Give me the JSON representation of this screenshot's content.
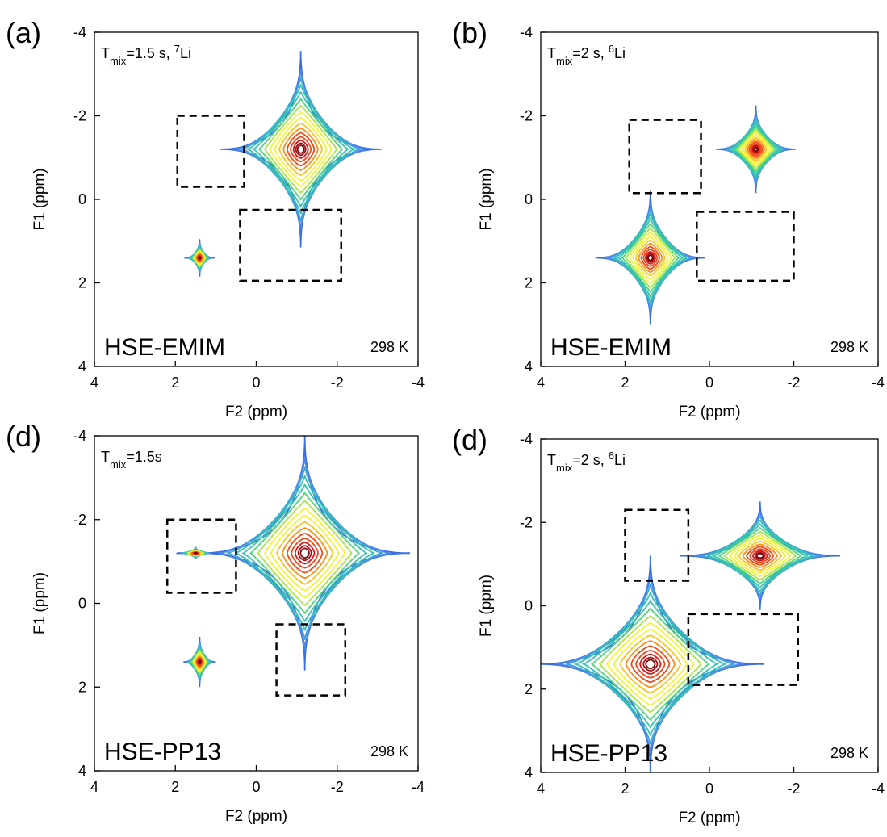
{
  "chart_data": [
    {
      "type": "contour",
      "panel_label": "(a)",
      "annotation": [
        {
          "text": "T"
        },
        {
          "text": "mix",
          "shift": "sub"
        },
        {
          "text": "=1.5 s, "
        },
        {
          "text": "7",
          "shift": "super"
        },
        {
          "text": "Li"
        }
      ],
      "sample": "HSE-EMIM",
      "temperature": "298 K",
      "xlabel": "F2 (ppm)",
      "ylabel": "F1 (ppm)",
      "xlim": [
        4,
        -4
      ],
      "ylim": [
        -4,
        4
      ],
      "xticks": [
        4,
        2,
        0,
        -2,
        -4
      ],
      "yticks": [
        -4,
        -2,
        0,
        2,
        4
      ],
      "peaks": [
        {
          "x": -1.1,
          "y": -1.2,
          "width": 2.0,
          "height": 2.35
        },
        {
          "x": 1.4,
          "y": 1.4,
          "width": 0.35,
          "height": 0.45
        }
      ],
      "regions": [
        {
          "x": [
            1.95,
            0.3
          ],
          "y": [
            -2,
            -0.3
          ]
        },
        {
          "x": [
            0.4,
            -2.1
          ],
          "y": [
            0.25,
            1.95
          ]
        }
      ]
    },
    {
      "type": "contour",
      "panel_label": "(b)",
      "annotation": [
        {
          "text": "T"
        },
        {
          "text": "mix",
          "shift": "sub"
        },
        {
          "text": "=2 s, "
        },
        {
          "text": "6",
          "shift": "super"
        },
        {
          "text": "Li"
        }
      ],
      "sample": "HSE-EMIM",
      "temperature": "298 K",
      "xlabel": "F2 (ppm)",
      "ylabel": "F1 (ppm)",
      "xlim": [
        4,
        -4
      ],
      "ylim": [
        -4,
        4
      ],
      "xticks": [
        4,
        2,
        0,
        -2,
        -4
      ],
      "yticks": [
        -4,
        -2,
        0,
        2,
        4
      ],
      "peaks": [
        {
          "x": -1.1,
          "y": -1.2,
          "width": 0.95,
          "height": 1.05
        },
        {
          "x": 1.4,
          "y": 1.4,
          "width": 1.3,
          "height": 1.6
        }
      ],
      "regions": [
        {
          "x": [
            1.9,
            0.2
          ],
          "y": [
            -1.9,
            -0.15
          ]
        },
        {
          "x": [
            0.3,
            -2
          ],
          "y": [
            0.3,
            1.95
          ]
        }
      ]
    },
    {
      "type": "contour",
      "panel_label": "(d)",
      "annotation": [
        {
          "text": "T"
        },
        {
          "text": "mix",
          "shift": "sub"
        },
        {
          "text": "=1.5s"
        }
      ],
      "sample": "HSE-PP13",
      "temperature": "298 K",
      "xlabel": "F2 (ppm)",
      "ylabel": "F1 (ppm)",
      "xlim": [
        4,
        -4
      ],
      "ylim": [
        -4,
        4
      ],
      "xticks": [
        4,
        2,
        0,
        -2,
        -4
      ],
      "yticks": [
        -4,
        -2,
        0,
        2,
        4
      ],
      "peaks": [
        {
          "x": -1.2,
          "y": -1.2,
          "width": 2.6,
          "height": 2.8
        },
        {
          "x": 1.4,
          "y": 1.4,
          "width": 0.4,
          "height": 0.6
        },
        {
          "x": 1.5,
          "y": -1.2,
          "width": 0.45,
          "height": 0.15
        }
      ],
      "regions": [
        {
          "x": [
            2.2,
            0.5
          ],
          "y": [
            -2,
            -0.25
          ]
        },
        {
          "x": [
            -0.5,
            -2.2
          ],
          "y": [
            0.5,
            2.2
          ]
        }
      ]
    },
    {
      "type": "contour",
      "panel_label": "(d)",
      "annotation": [
        {
          "text": "T"
        },
        {
          "text": "mix",
          "shift": "sub"
        },
        {
          "text": "=2 s, "
        },
        {
          "text": "6",
          "shift": "super"
        },
        {
          "text": "Li"
        }
      ],
      "sample": "HSE-PP13",
      "temperature": "298 K",
      "xlabel": "F2 (ppm)",
      "ylabel": "F1 (ppm)",
      "xlim": [
        4,
        -4
      ],
      "ylim": [
        -4,
        4
      ],
      "xticks": [
        4,
        2,
        0,
        -2,
        -4
      ],
      "yticks": [
        -4,
        -2,
        0,
        2,
        4
      ],
      "peaks": [
        {
          "x": -1.2,
          "y": -1.2,
          "width": 1.9,
          "height": 1.3
        },
        {
          "x": 1.4,
          "y": 1.4,
          "width": 2.7,
          "height": 2.6
        }
      ],
      "regions": [
        {
          "x": [
            2,
            0.5
          ],
          "y": [
            -2.3,
            -0.6
          ]
        },
        {
          "x": [
            0.5,
            -2.1
          ],
          "y": [
            0.2,
            1.9
          ]
        }
      ]
    }
  ],
  "colormap": [
    "#3b6fe0",
    "#4a86e8",
    "#3fa6d8",
    "#37c3b0",
    "#4fd67a",
    "#a6e64a",
    "#f2f23a",
    "#f8c22a",
    "#f58f1e",
    "#ef4a1a",
    "#d8161a",
    "#a80f14",
    "#6e0a0a"
  ]
}
